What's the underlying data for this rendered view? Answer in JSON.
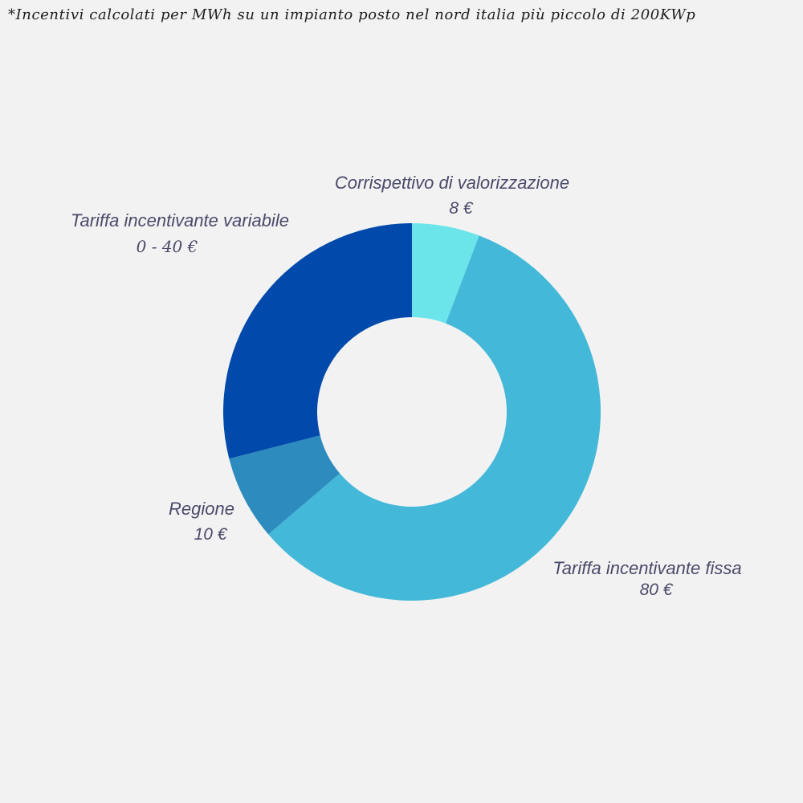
{
  "title": "*Incentivi calcolati per MWh su un impianto posto nel nord italia più piccolo di 200KWp",
  "chart_data": {
    "type": "pie",
    "donut": true,
    "slices": [
      {
        "label": "Corrispettivo di valorizzazione",
        "value_text": "8 €",
        "value": 8,
        "color": "#6ce5ea"
      },
      {
        "label": "Tariffa incentivante fissa",
        "value_text": "80 €",
        "value": 80,
        "color": "#43b8d8"
      },
      {
        "label": "Regione",
        "value_text": "10 €",
        "value": 10,
        "color": "#2e8bbe"
      },
      {
        "label": "Tariffa incentivante variabile",
        "value_text": "0 - 40 €",
        "value": 40,
        "color": "#014aab"
      }
    ]
  }
}
